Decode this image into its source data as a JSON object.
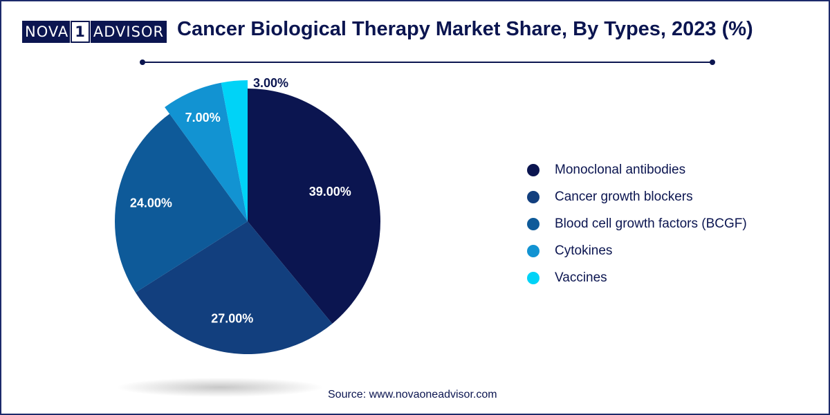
{
  "brand": {
    "logo_left": "NOVA",
    "logo_mid": "1",
    "logo_right": "ADVISOR"
  },
  "header": {
    "title": "Cancer Biological Therapy Market Share, By Types, 2023 (%)"
  },
  "footer": {
    "source": "Source: www.novaoneadvisor.com"
  },
  "chart_data": {
    "type": "pie",
    "title": "Cancer Biological Therapy Market Share, By Types, 2023 (%)",
    "categories": [
      "Monoclonal antibodies",
      "Cancer growth blockers",
      "Blood cell growth factors (BCGF)",
      "Cytokines",
      "Vaccines"
    ],
    "values": [
      39.0,
      27.0,
      24.0,
      7.0,
      3.0
    ],
    "data_labels": [
      "39.00%",
      "27.00%",
      "24.00%",
      "7.00%",
      "3.00%"
    ],
    "colors": [
      "#0b1550",
      "#123f7e",
      "#0e5a99",
      "#1293d2",
      "#00d3f7"
    ],
    "legend_position": "right"
  }
}
